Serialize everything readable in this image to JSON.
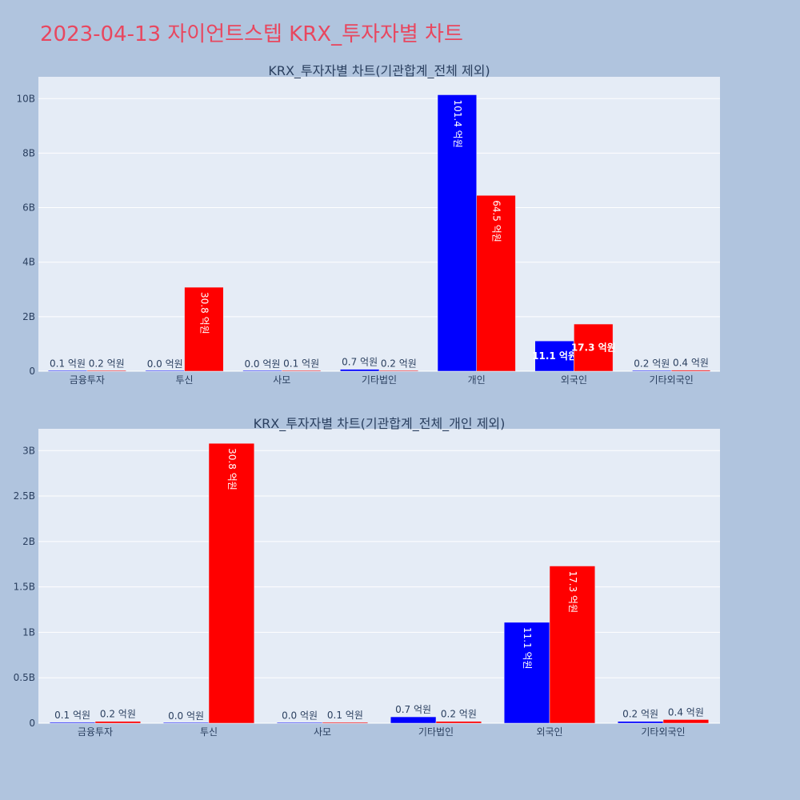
{
  "title": "2023-04-13 자이언트스텝 KRX_투자자별 차트",
  "colors": {
    "page_bg": "#b0c4de",
    "plot_bg": "#e5ecf6",
    "grid": "#ffffff",
    "title": "#e8475f",
    "text": "#2a3f5f",
    "series_blue": "#0000ff",
    "series_red": "#ff0000"
  },
  "chart_data": [
    {
      "type": "bar",
      "title": "KRX_투자자별 차트(기관합계_전체 제외)",
      "categories": [
        "금융투자",
        "투신",
        "사모",
        "기타법인",
        "개인",
        "외국인",
        "기타외국인"
      ],
      "series": [
        {
          "color": "#0000ff",
          "values": [
            10000000,
            2000000,
            3000000,
            70000000,
            10140000000,
            1110000000,
            20000000
          ],
          "labels": [
            "0.1 억원",
            "0.0 억원",
            "0.0 억원",
            "0.7 억원",
            "101.4 억원",
            "11.1 억원",
            "0.2 억원"
          ]
        },
        {
          "color": "#ff0000",
          "values": [
            20000000,
            3080000000,
            10000000,
            20000000,
            6450000000,
            1730000000,
            40000000
          ],
          "labels": [
            "0.2 억원",
            "30.8 억원",
            "0.1 억원",
            "0.2 억원",
            "64.5 억원",
            "17.3 억원",
            "0.4 억원"
          ]
        }
      ],
      "ylim": [
        0,
        10800000000
      ],
      "yticks": [
        0,
        2000000000,
        4000000000,
        6000000000,
        8000000000,
        10000000000
      ],
      "ytick_labels": [
        "0",
        "2B",
        "4B",
        "6B",
        "8B",
        "10B"
      ],
      "grid": true
    },
    {
      "type": "bar",
      "title": "KRX_투자자별 차트(기관합계_전체_개인 제외)",
      "categories": [
        "금융투자",
        "투신",
        "사모",
        "기타법인",
        "외국인",
        "기타외국인"
      ],
      "series": [
        {
          "color": "#0000ff",
          "values": [
            10000000,
            2000000,
            3000000,
            70000000,
            1110000000,
            20000000
          ],
          "labels": [
            "0.1 억원",
            "0.0 억원",
            "0.0 억원",
            "0.7 억원",
            "11.1 억원",
            "0.2 억원"
          ]
        },
        {
          "color": "#ff0000",
          "values": [
            20000000,
            3080000000,
            10000000,
            20000000,
            1730000000,
            40000000
          ],
          "labels": [
            "0.2 억원",
            "30.8 억원",
            "0.1 억원",
            "0.2 억원",
            "17.3 억원",
            "0.4 억원"
          ]
        }
      ],
      "ylim": [
        0,
        3240000000
      ],
      "yticks": [
        0,
        500000000,
        1000000000,
        1500000000,
        2000000000,
        2500000000,
        3000000000
      ],
      "ytick_labels": [
        "0",
        "0.5B",
        "1B",
        "1.5B",
        "2B",
        "2.5B",
        "3B"
      ],
      "grid": true
    }
  ]
}
